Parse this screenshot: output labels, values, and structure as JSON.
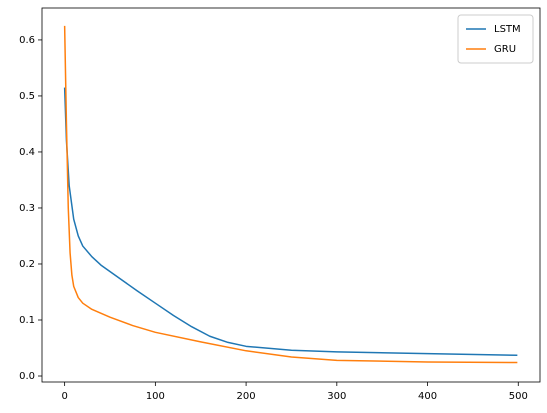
{
  "chart_data": {
    "type": "line",
    "xlim": [
      -24.95,
      523.95
    ],
    "xticks": [
      0,
      100,
      200,
      300,
      400,
      500
    ],
    "ylim": [
      -0.0107,
      0.657
    ],
    "yticks": [
      {
        "value": 0,
        "label": "0.0"
      },
      0.1,
      0.2,
      0.3,
      0.4,
      0.5,
      0.6
    ],
    "legend": "upper right",
    "series": [
      {
        "name": "LSTM",
        "color": "#1f77b4",
        "x": [
          0,
          2,
          5,
          10,
          15,
          20,
          30,
          40,
          60,
          80,
          100,
          120,
          140,
          160,
          180,
          200,
          250,
          300,
          400,
          499
        ],
        "values": [
          0.515,
          0.42,
          0.34,
          0.28,
          0.25,
          0.232,
          0.213,
          0.198,
          0.175,
          0.152,
          0.13,
          0.108,
          0.088,
          0.071,
          0.06,
          0.053,
          0.046,
          0.043,
          0.04,
          0.037
        ]
      },
      {
        "name": "GRU",
        "color": "#ff7f0e",
        "x": [
          0,
          2,
          4,
          6,
          8,
          10,
          15,
          20,
          30,
          50,
          75,
          100,
          150,
          200,
          250,
          300,
          400,
          499
        ],
        "values": [
          0.625,
          0.45,
          0.3,
          0.22,
          0.18,
          0.16,
          0.14,
          0.13,
          0.119,
          0.105,
          0.09,
          0.078,
          0.061,
          0.045,
          0.034,
          0.028,
          0.025,
          0.024
        ]
      }
    ]
  }
}
